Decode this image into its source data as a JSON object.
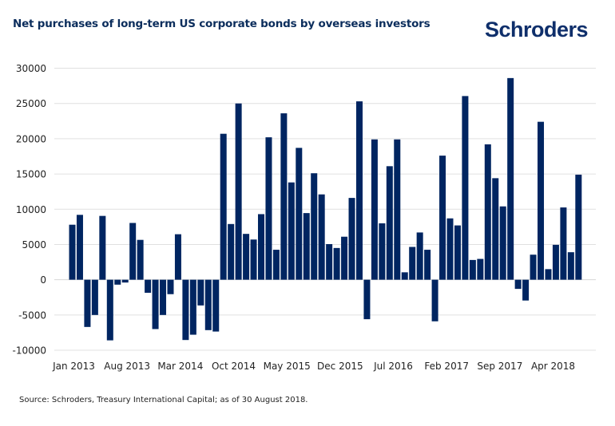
{
  "header": {
    "title": "Net purchases of long-term US corporate bonds by overseas investors",
    "logo_text": "Schroders"
  },
  "footer": {
    "source": "Source: Schroders, Treasury International Capital; as of 30 August 2018."
  },
  "colors": {
    "bar": "#002561",
    "grid": "#e0e0e0",
    "title": "#0b2d5c"
  },
  "chart_data": {
    "type": "bar",
    "title": "Net purchases of long-term US corporate bonds by overseas investors",
    "xlabel": "",
    "ylabel": "",
    "ylim": [
      -10000,
      30000
    ],
    "yticks": [
      "30000",
      "25000",
      "20000",
      "15000",
      "10000",
      "5000",
      "0",
      "-5000",
      "-10000"
    ],
    "ytick_values": [
      30000,
      25000,
      20000,
      15000,
      10000,
      5000,
      0,
      -5000,
      -10000
    ],
    "grid": true,
    "legend": "none",
    "xtick_labels": [
      "Jan 2013",
      "Aug 2013",
      "Mar 2014",
      "Oct 2014",
      "May 2015",
      "Dec 2015",
      "Jul 2016",
      "Feb 2017",
      "Sep 2017",
      "Apr 2018"
    ],
    "xtick_every": 7,
    "categories": [
      "Jan 2013",
      "Feb 2013",
      "Mar 2013",
      "Apr 2013",
      "May 2013",
      "Jun 2013",
      "Jul 2013",
      "Aug 2013",
      "Sep 2013",
      "Oct 2013",
      "Nov 2013",
      "Dec 2013",
      "Jan 2014",
      "Feb 2014",
      "Mar 2014",
      "Apr 2014",
      "May 2014",
      "Jun 2014",
      "Jul 2014",
      "Aug 2014",
      "Sep 2014",
      "Oct 2014",
      "Nov 2014",
      "Dec 2014",
      "Jan 2015",
      "Feb 2015",
      "Mar 2015",
      "Apr 2015",
      "May 2015",
      "Jun 2015",
      "Jul 2015",
      "Aug 2015",
      "Sep 2015",
      "Oct 2015",
      "Nov 2015",
      "Dec 2015",
      "Jan 2016",
      "Feb 2016",
      "Mar 2016",
      "Apr 2016",
      "May 2016",
      "Jun 2016",
      "Jul 2016",
      "Aug 2016",
      "Sep 2016",
      "Oct 2016",
      "Nov 2016",
      "Dec 2016",
      "Jan 2017",
      "Feb 2017",
      "Mar 2017",
      "Apr 2017",
      "May 2017",
      "Jun 2017",
      "Jul 2017",
      "Aug 2017",
      "Sep 2017",
      "Oct 2017",
      "Nov 2017",
      "Dec 2017",
      "Jan 2018",
      "Feb 2018",
      "Mar 2018",
      "Apr 2018",
      "May 2018",
      "Jun 2018",
      "Jul 2018",
      "Aug 2018"
    ],
    "values": [
      7800,
      9200,
      -6700,
      -5000,
      9050,
      -8600,
      -700,
      -400,
      8050,
      5650,
      -1850,
      -7000,
      -5000,
      -2050,
      6450,
      -8550,
      -7800,
      -3650,
      -7150,
      -7350,
      20700,
      7900,
      25000,
      6500,
      5700,
      9300,
      20200,
      4250,
      23600,
      13800,
      18700,
      9450,
      15100,
      12100,
      5050,
      4500,
      6100,
      11600,
      25300,
      -5600,
      19900,
      8000,
      16100,
      19900,
      1050,
      4650,
      6700,
      4250,
      -5900,
      17600,
      8700,
      7700,
      26050,
      2800,
      2950,
      19200,
      14400,
      10400,
      28600,
      -1300,
      -2950,
      3550,
      22400,
      1500,
      4950,
      10250,
      3900,
      14900
    ]
  }
}
